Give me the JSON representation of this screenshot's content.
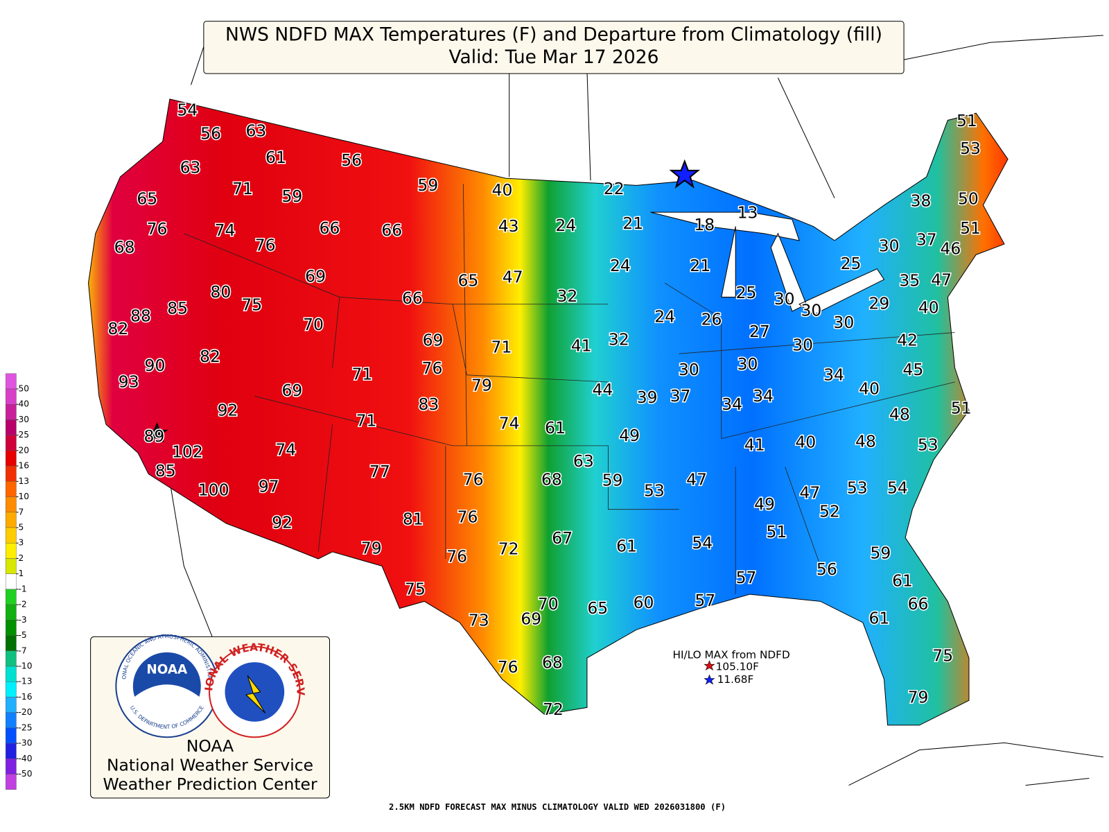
{
  "title": {
    "line1": "NWS NDFD MAX Temperatures (F) and Departure from Climatology (fill)",
    "line2": "Valid: Tue Mar 17 2026"
  },
  "temperatures": [
    54,
    56,
    63,
    61,
    56,
    59,
    63,
    71,
    59,
    65,
    40,
    22,
    13,
    43,
    24,
    21,
    18,
    38,
    50,
    51,
    53,
    76,
    74,
    66,
    66,
    76,
    68,
    51,
    37,
    46,
    30,
    25,
    24,
    21,
    47,
    65,
    69,
    80,
    75,
    85,
    88,
    82,
    66,
    32,
    25,
    30,
    30,
    35,
    47,
    29,
    40,
    70,
    30,
    24,
    26,
    27,
    69,
    71,
    41,
    32,
    30,
    42,
    90,
    82,
    71,
    76,
    30,
    30,
    34,
    45,
    93,
    79,
    69,
    44,
    39,
    37,
    34,
    34,
    40,
    51,
    92,
    83,
    48,
    71,
    74,
    61,
    89,
    102,
    49,
    41,
    40,
    48,
    53,
    74,
    63,
    85,
    76,
    77,
    68,
    59,
    53,
    47,
    53,
    54,
    100,
    97,
    47,
    49,
    52,
    92,
    81,
    76,
    51,
    54,
    61,
    67,
    72,
    79,
    76,
    59,
    56,
    57,
    61,
    75,
    57,
    60,
    65,
    70,
    66,
    73,
    69,
    61,
    75,
    76,
    68,
    79,
    72
  ],
  "colorbar": {
    "labels": [
      50,
      40,
      30,
      25,
      20,
      16,
      13,
      10,
      7,
      5,
      3,
      2,
      1,
      -1,
      -2,
      -3,
      -5,
      -7,
      -10,
      -13,
      -16,
      -20,
      -25,
      -30,
      -40,
      -50
    ],
    "colors": [
      "#e055e0",
      "#d840c8",
      "#c8209a",
      "#b8006a",
      "#d0003a",
      "#e60000",
      "#f03000",
      "#ff6600",
      "#ff8c00",
      "#ffaa00",
      "#ffcc00",
      "#ffee00",
      "#d8e800",
      "#ffffff",
      "#20d020",
      "#10b010",
      "#009000",
      "#007000",
      "#10c080",
      "#00e0d0",
      "#00f0ff",
      "#20b0ff",
      "#1080ff",
      "#0050ff",
      "#2020e0",
      "#8020e0",
      "#c040e0"
    ]
  },
  "hi_lo": {
    "title": "HI/LO MAX from NDFD",
    "hi": "105.10F",
    "lo": "11.68F"
  },
  "credits": {
    "noaa_seal_top": "NATIONAL OCEANIC AND ATMOSPHERIC ADMINISTRATION",
    "noaa_seal_bottom": "U.S. DEPARTMENT OF COMMERCE",
    "noaa_seal_center": "NOAA",
    "nws_seal": "NATIONAL WEATHER SERVICE",
    "line1": "NOAA",
    "line2": "National Weather Service",
    "line3": "Weather Prediction Center"
  },
  "footer": "2.5KM NDFD FORECAST MAX MINUS CLIMATOLOGY VALID WED 2026031800 (F)"
}
